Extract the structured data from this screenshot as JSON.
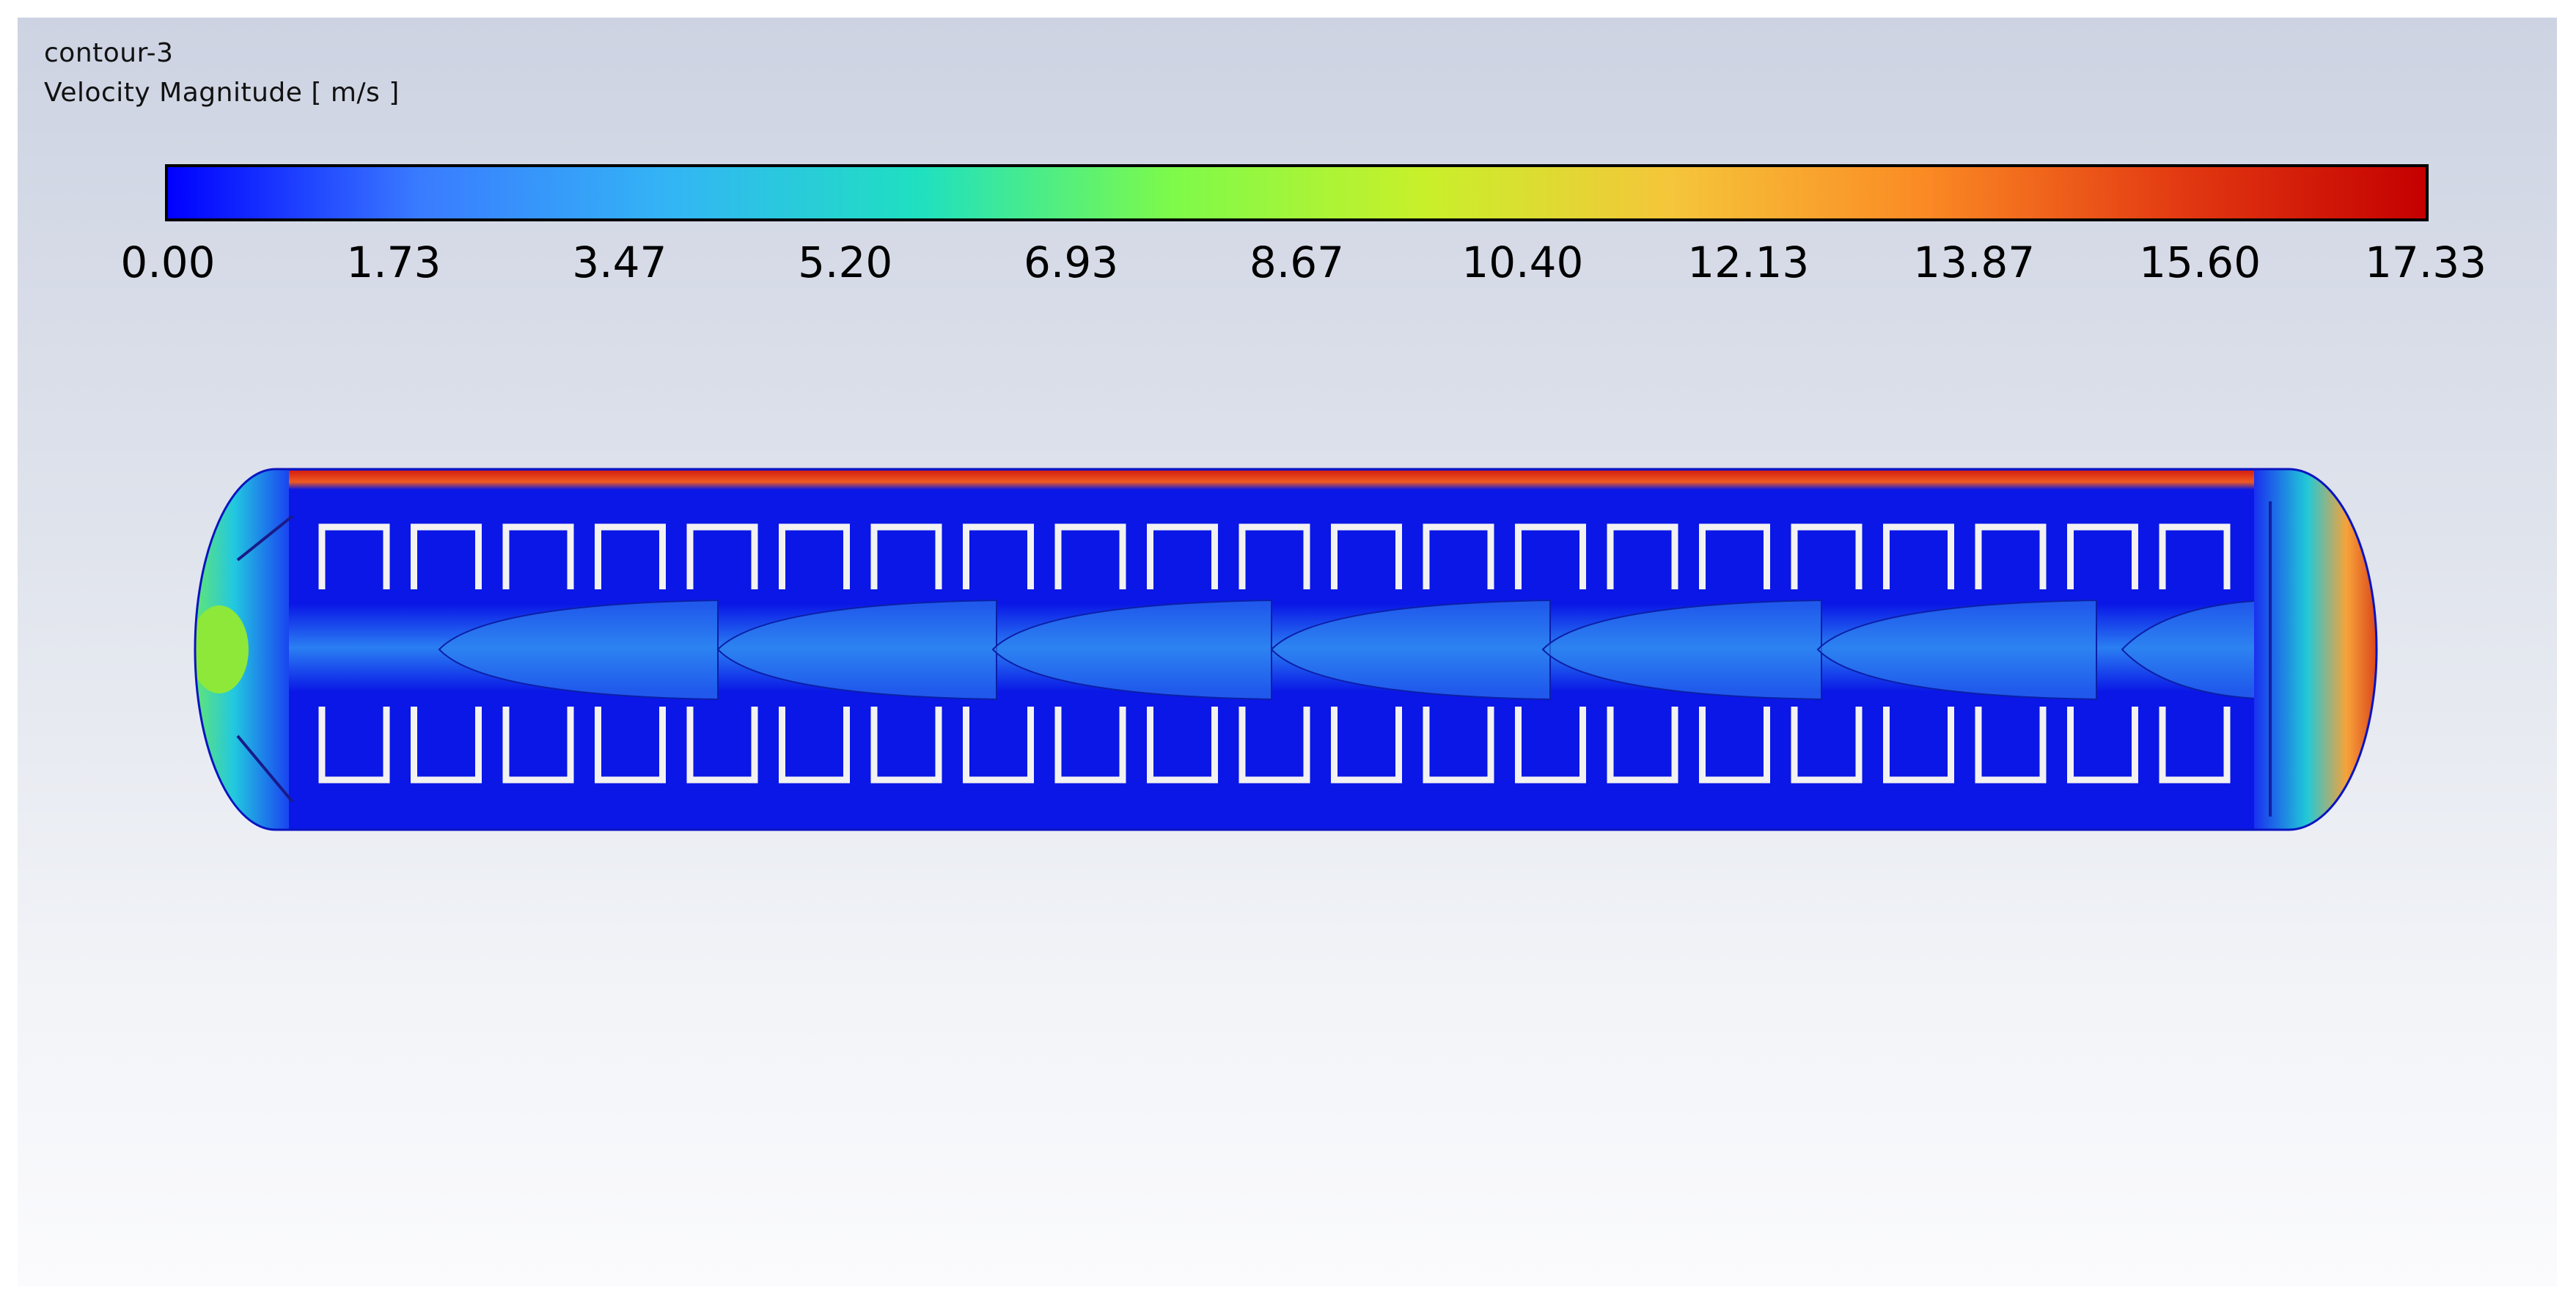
{
  "title": {
    "name": "contour-3",
    "quantity": "Velocity Magnitude [ m/s ]"
  },
  "colorbar": {
    "min": 0.0,
    "max": 17.33,
    "tick_labels": [
      "0.00",
      "1.73",
      "3.47",
      "5.20",
      "6.93",
      "8.67",
      "10.40",
      "12.13",
      "13.87",
      "15.60",
      "17.33"
    ],
    "colormap_stops": [
      "#0000ff",
      "#3a7bff",
      "#33b5f5",
      "#1fe0c0",
      "#7dfa4a",
      "#c8f02a",
      "#f5c53a",
      "#fb8a24",
      "#e33b12",
      "#c40000"
    ]
  },
  "domain_colors": {
    "background_flow": "#0a17e6",
    "wake_band": "#1f6ff0",
    "wall_jet": "#e02a10",
    "inlet": "#8de83a",
    "outlet": "#f07a25",
    "baffle": "#f2f2f2"
  }
}
